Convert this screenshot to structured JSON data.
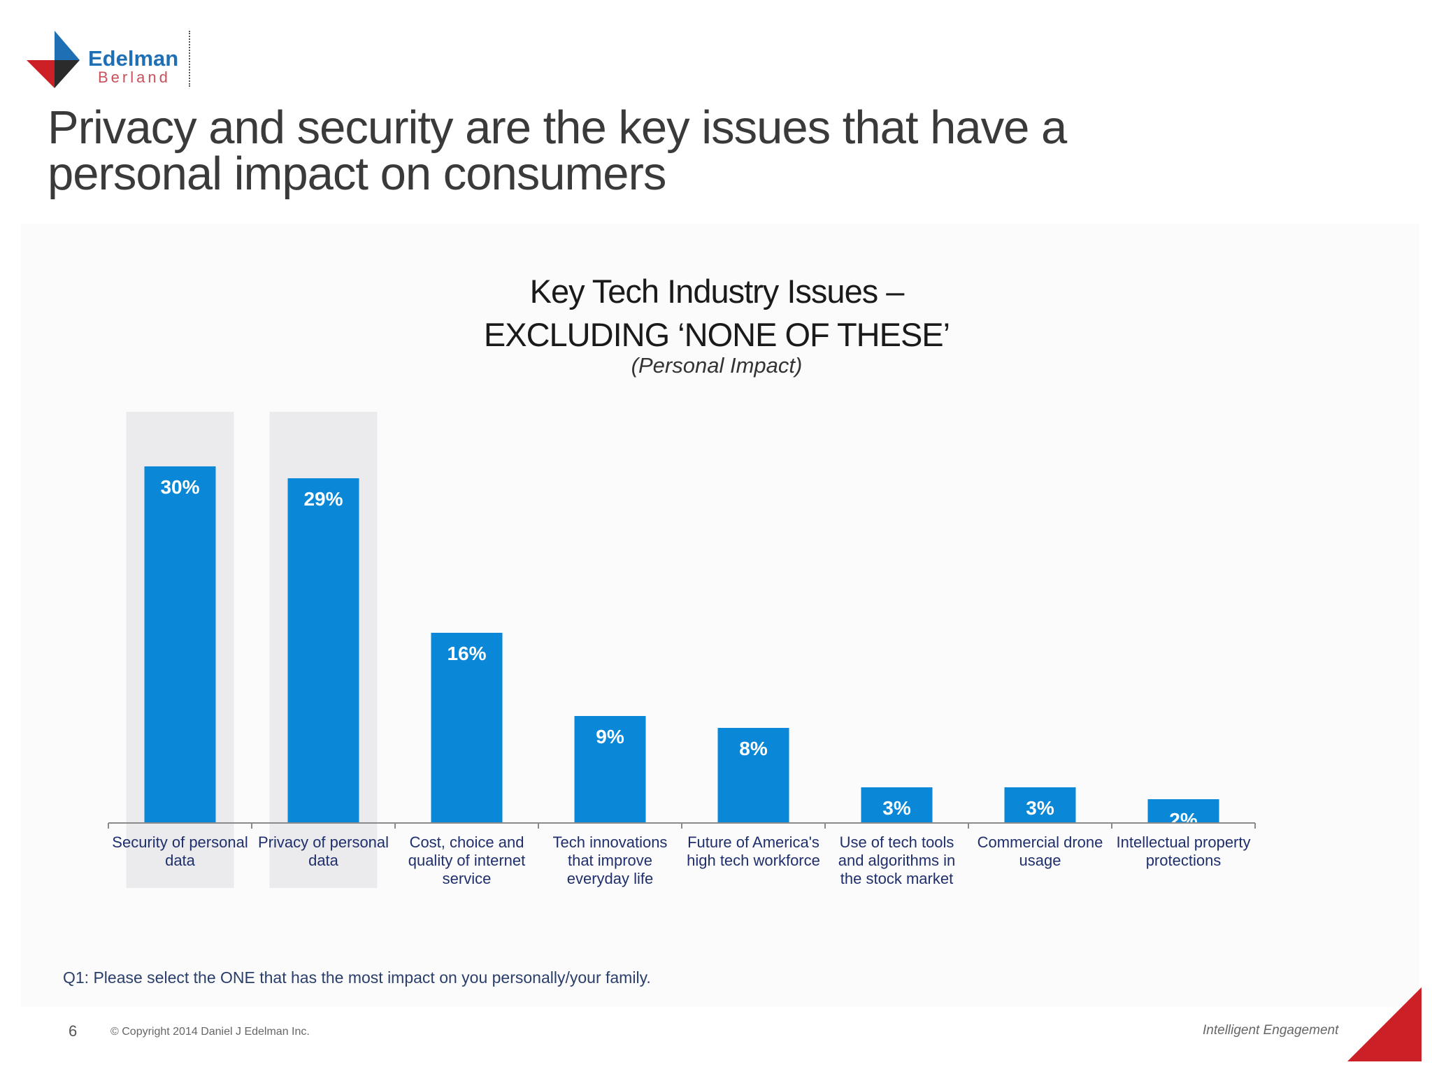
{
  "brand": {
    "name": "Edelman",
    "sub": "Berland",
    "colors": {
      "blue": "#1f6fb5",
      "red": "#cc1f26",
      "dark": "#2b2b2b"
    }
  },
  "slide": {
    "title": "Privacy and security are the key issues that have a personal impact on consumers",
    "footnote": "Q1: Please select the ONE that has the most impact on you personally/your family.",
    "page_number": "6",
    "copyright": "© Copyright 2014 Daniel J Edelman Inc.",
    "tagline": "Intelligent Engagement"
  },
  "chart_data": {
    "type": "bar",
    "title_line1": "Key Tech Industry Issues –",
    "title_line2": "EXCLUDING ‘NONE OF THESE’",
    "subtitle": "(Personal Impact)",
    "categories": [
      "Security of personal data",
      "Privacy of personal data",
      "Cost, choice and quality of internet service",
      "Tech innovations that improve everyday life",
      "Future of America's high tech workforce",
      "Use of tech tools and algorithms in the stock market",
      "Commercial drone usage",
      "Intellectual property protections"
    ],
    "category_lines": [
      [
        "Security of personal",
        "data"
      ],
      [
        "Privacy of personal",
        "data"
      ],
      [
        "Cost, choice and",
        "quality of internet",
        "service"
      ],
      [
        "Tech innovations",
        "that improve",
        "everyday life"
      ],
      [
        "Future of America's",
        "high tech workforce"
      ],
      [
        "Use of tech tools",
        "and algorithms in",
        "the stock market"
      ],
      [
        "Commercial drone",
        "usage"
      ],
      [
        "Intellectual property",
        "protections"
      ]
    ],
    "values": [
      30,
      29,
      16,
      9,
      8,
      3,
      3,
      2
    ],
    "labels": [
      "30%",
      "29%",
      "16%",
      "9%",
      "8%",
      "3%",
      "3%",
      "2%"
    ],
    "highlighted": [
      0,
      1
    ],
    "ylim": [
      0,
      30
    ],
    "bar_color": "#0a87d6",
    "highlight_color": "#ebebed",
    "xlabel": "",
    "ylabel": ""
  }
}
